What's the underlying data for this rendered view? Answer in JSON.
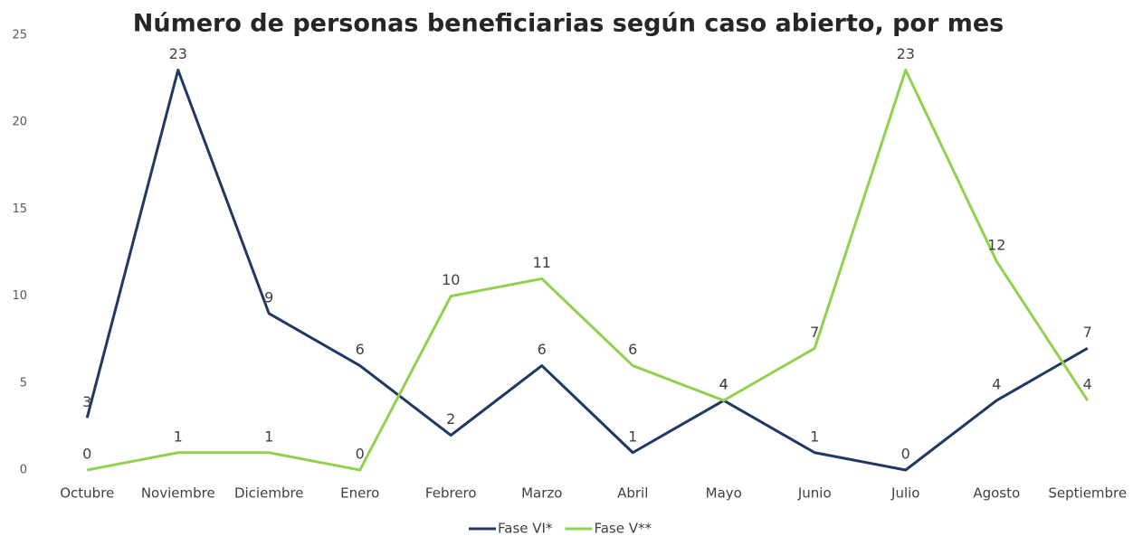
{
  "chart_data": {
    "type": "line",
    "title": "Número de personas beneficiarias según caso abierto, por mes",
    "categories": [
      "Octubre",
      "Noviembre",
      "Diciembre",
      "Enero",
      "Febrero",
      "Marzo",
      "Abril",
      "Mayo",
      "Junio",
      "Julio",
      "Agosto",
      "Septiembre"
    ],
    "series": [
      {
        "name": "Fase VI*",
        "color": "#1f3864",
        "values": [
          3,
          23,
          9,
          6,
          2,
          6,
          1,
          4,
          1,
          0,
          4,
          7
        ]
      },
      {
        "name": "Fase V**",
        "color": "#92d050",
        "values": [
          0,
          1,
          1,
          0,
          10,
          11,
          6,
          4,
          7,
          23,
          12,
          4
        ]
      }
    ],
    "ylim": [
      0,
      25
    ],
    "yticks": [
      0,
      5,
      10,
      15,
      20,
      25
    ],
    "grid": false,
    "legend": "bottom"
  }
}
